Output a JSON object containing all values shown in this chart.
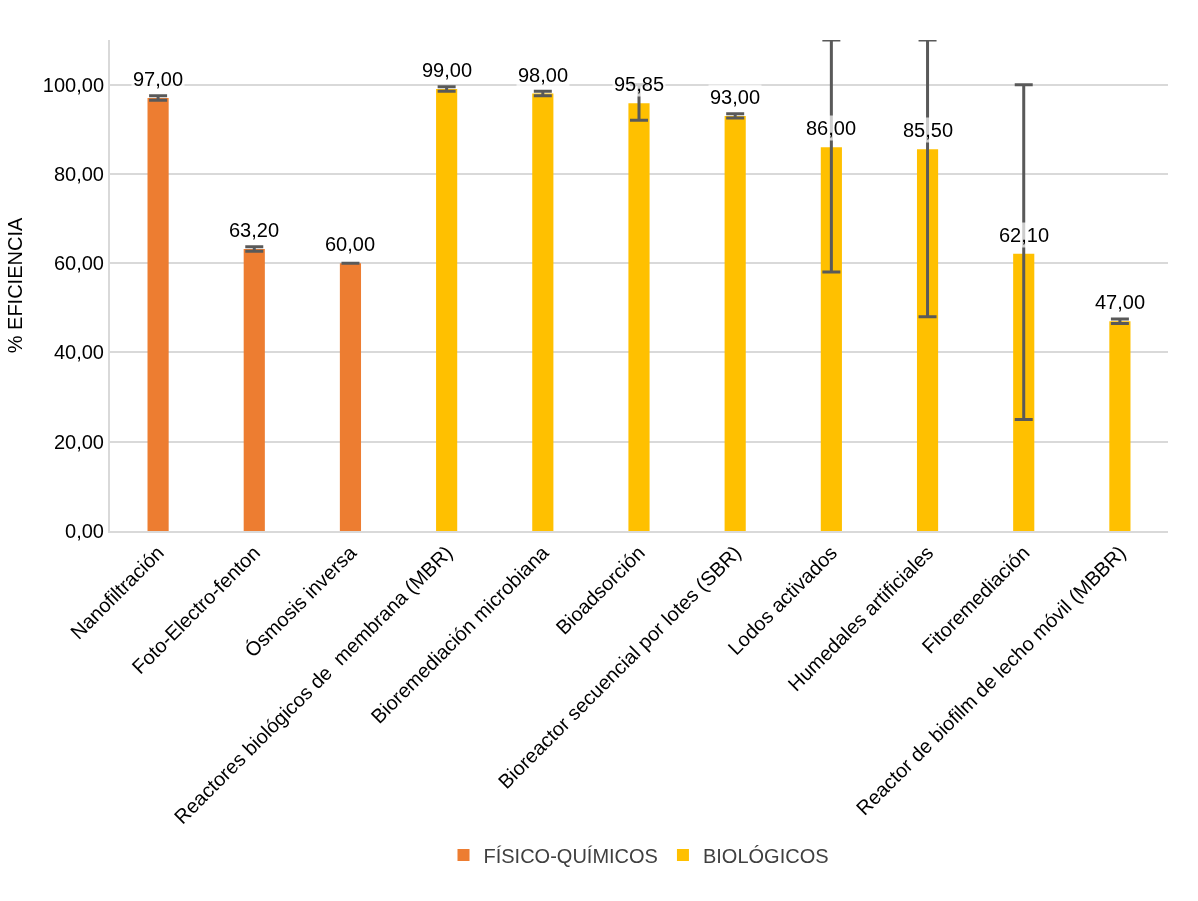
{
  "chart_data": {
    "type": "bar",
    "ylabel": "% EFICIENCIA",
    "categories": [
      "Nanofiltración",
      "Foto-Electro-fenton",
      "Ósmosis inversa",
      "Reactores biológicos de  membrana (MBR)",
      "Bioremediación microbiana",
      "Bioadsorción",
      "Bioreactor secuencial por lotes (SBR)",
      "Lodos activados",
      "Humedales artificiales",
      "Fitoremediación",
      "Reactor de biofilm de lecho móvil (MBBR)"
    ],
    "series": [
      {
        "name": "FÍSICO-QUÍMICOS",
        "color": "#ed7d31",
        "values": [
          97,
          63.2,
          60,
          null,
          null,
          null,
          null,
          null,
          null,
          null,
          null
        ],
        "value_labels": [
          "97,00",
          "63,20",
          "60,00",
          null,
          null,
          null,
          null,
          null,
          null,
          null,
          null
        ],
        "errors": [
          0.5,
          0.5,
          null,
          null,
          null,
          null,
          null,
          null,
          null,
          null,
          null
        ]
      },
      {
        "name": "BIOLÓGICOS",
        "color": "#ffc000",
        "values": [
          null,
          null,
          null,
          99,
          98,
          95.85,
          93,
          86,
          85.5,
          62.1,
          47
        ],
        "value_labels": [
          null,
          null,
          null,
          "99,00",
          "98,00",
          "95,85",
          "93,00",
          "86,00",
          "85,50",
          "62,10",
          "47,00"
        ],
        "errors": [
          null,
          null,
          null,
          0.5,
          0.5,
          [
            92,
            100
          ],
          0.5,
          [
            58,
            110
          ],
          [
            48,
            110
          ],
          [
            25,
            100
          ],
          0.5
        ]
      }
    ],
    "ylim": [
      0,
      110
    ],
    "yticks": [
      {
        "value": 0,
        "label": "0,00"
      },
      {
        "value": 20,
        "label": "20,00"
      },
      {
        "value": 40,
        "label": "40,00"
      },
      {
        "value": 60,
        "label": "60,00"
      },
      {
        "value": 80,
        "label": "80,00"
      },
      {
        "value": 100,
        "label": "100,00"
      }
    ],
    "grid": "y",
    "legend": "bottom"
  }
}
